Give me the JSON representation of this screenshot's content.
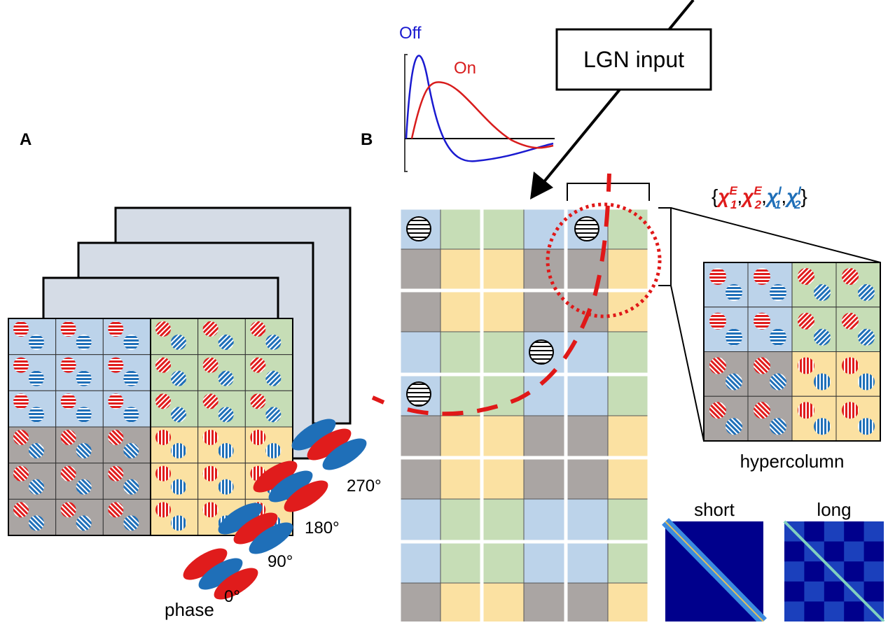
{
  "panels": {
    "a": {
      "label": "A",
      "phase_label": "phase",
      "phases": [
        "0°",
        "90°",
        "180°",
        "270°"
      ]
    },
    "b": {
      "label": "B",
      "response": {
        "off": "Off",
        "on": "On"
      },
      "input_box": "LGN input",
      "parameters": {
        "open": "{",
        "sep": ",",
        "close": "}",
        "terms": [
          {
            "base": "χ",
            "sub": "1",
            "sup": "E"
          },
          {
            "base": "χ",
            "sub": "2",
            "sup": "E"
          },
          {
            "base": "χ",
            "sub": "1",
            "sup": "I"
          },
          {
            "base": "χ",
            "sub": "2",
            "sup": "I"
          }
        ]
      },
      "zoom_caption": "hypercolumn",
      "connectivity": [
        "short",
        "long"
      ]
    }
  }
}
